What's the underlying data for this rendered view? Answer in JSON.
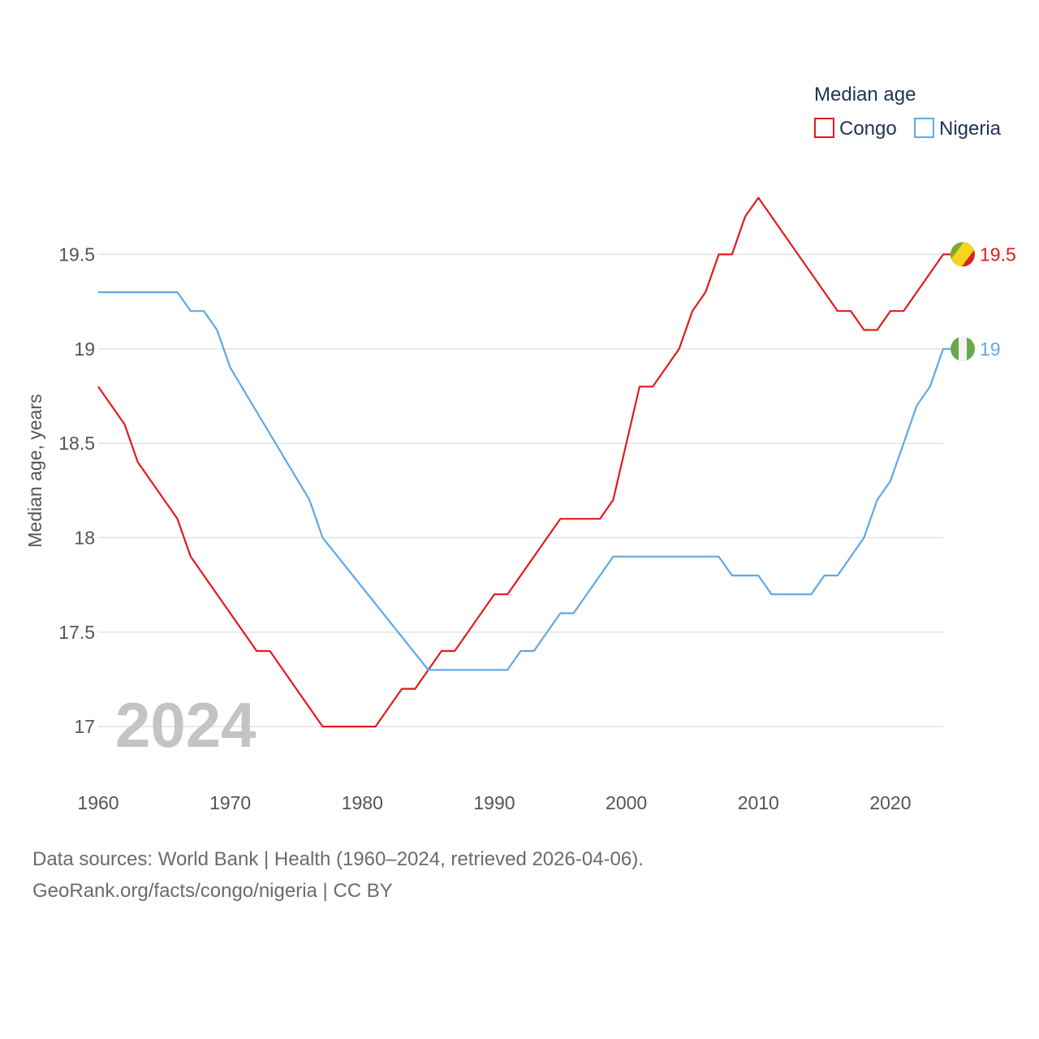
{
  "chart_data": {
    "type": "line",
    "legend_title": "Median age",
    "ylabel": "Median age, years",
    "xlabel": "",
    "xlim": [
      1960,
      2024
    ],
    "ylim": [
      16.85,
      19.88
    ],
    "x_ticks": [
      1960,
      1970,
      1980,
      1990,
      2000,
      2010,
      2020
    ],
    "y_ticks": [
      17,
      17.5,
      18,
      18.5,
      19,
      19.5
    ],
    "y_tick_labels": [
      "17",
      "17.5",
      "18",
      "18.5",
      "19",
      "19.5"
    ],
    "highlight_year": "2024",
    "legend_position": "top-right",
    "series": [
      {
        "name": "Congo",
        "color": "#e31a1c",
        "end_label": "19.5",
        "flag_icon": "congo-flag-icon",
        "points": [
          [
            1960,
            18.8
          ],
          [
            1962,
            18.6
          ],
          [
            1963,
            18.4
          ],
          [
            1966,
            18.1
          ],
          [
            1967,
            17.9
          ],
          [
            1972,
            17.4
          ],
          [
            1973,
            17.4
          ],
          [
            1977,
            17.0
          ],
          [
            1981,
            17.0
          ],
          [
            1983,
            17.2
          ],
          [
            1984,
            17.2
          ],
          [
            1986,
            17.4
          ],
          [
            1987,
            17.4
          ],
          [
            1990,
            17.7
          ],
          [
            1991,
            17.7
          ],
          [
            1995,
            18.1
          ],
          [
            1998,
            18.1
          ],
          [
            1999,
            18.2
          ],
          [
            2001,
            18.8
          ],
          [
            2002,
            18.8
          ],
          [
            2004,
            19.0
          ],
          [
            2005,
            19.2
          ],
          [
            2006,
            19.3
          ],
          [
            2007,
            19.5
          ],
          [
            2008,
            19.5
          ],
          [
            2009,
            19.7
          ],
          [
            2010,
            19.8
          ],
          [
            2016,
            19.2
          ],
          [
            2017,
            19.2
          ],
          [
            2018,
            19.1
          ],
          [
            2019,
            19.1
          ],
          [
            2020,
            19.2
          ],
          [
            2021,
            19.2
          ],
          [
            2024,
            19.5
          ]
        ]
      },
      {
        "name": "Nigeria",
        "color": "#5ea9e6",
        "end_label": "19",
        "flag_icon": "nigeria-flag-icon",
        "points": [
          [
            1960,
            19.3
          ],
          [
            1966,
            19.3
          ],
          [
            1967,
            19.2
          ],
          [
            1968,
            19.2
          ],
          [
            1969,
            19.1
          ],
          [
            1970,
            18.9
          ],
          [
            1976,
            18.2
          ],
          [
            1977,
            18.0
          ],
          [
            1985,
            17.3
          ],
          [
            1991,
            17.3
          ],
          [
            1992,
            17.4
          ],
          [
            1993,
            17.4
          ],
          [
            1995,
            17.6
          ],
          [
            1996,
            17.6
          ],
          [
            1999,
            17.9
          ],
          [
            2007,
            17.9
          ],
          [
            2008,
            17.8
          ],
          [
            2010,
            17.8
          ],
          [
            2011,
            17.7
          ],
          [
            2014,
            17.7
          ],
          [
            2015,
            17.8
          ],
          [
            2016,
            17.8
          ],
          [
            2018,
            18.0
          ],
          [
            2019,
            18.2
          ],
          [
            2020,
            18.3
          ],
          [
            2022,
            18.7
          ],
          [
            2023,
            18.8
          ],
          [
            2024,
            19.0
          ]
        ]
      }
    ]
  },
  "footer": {
    "line1": "Data sources: World Bank | Health (1960–2024, retrieved 2026-04-06).",
    "line2": "GeoRank.org/facts/congo/nigeria | CC BY"
  }
}
